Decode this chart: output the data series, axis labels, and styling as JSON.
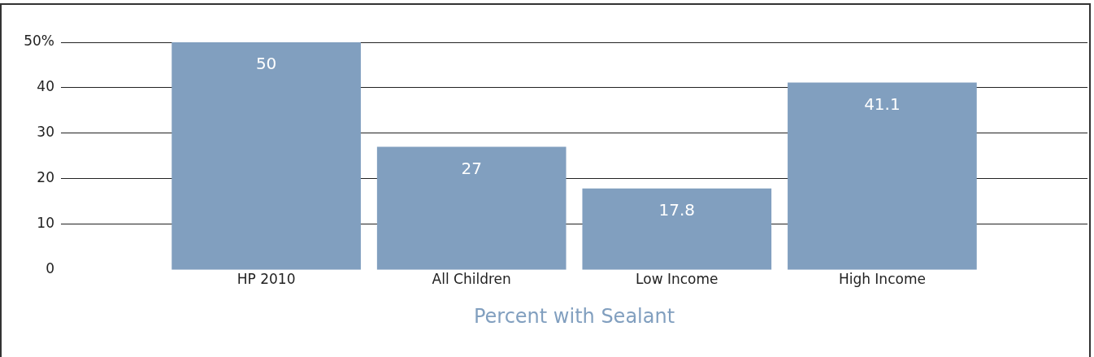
{
  "chart_data": {
    "type": "bar",
    "categories": [
      "HP 2010",
      "All Children",
      "Low Income",
      "High Income"
    ],
    "values": [
      50,
      27,
      17.8,
      41.1
    ],
    "color": "#819fbf",
    "xlabel": "Percent with Sealant",
    "ylim": [
      0,
      50
    ],
    "yticks": [
      0,
      10,
      20,
      30,
      40,
      {
        "value": 50,
        "label": "50%"
      }
    ],
    "grid": "y",
    "data_labels": true,
    "legend": false
  }
}
